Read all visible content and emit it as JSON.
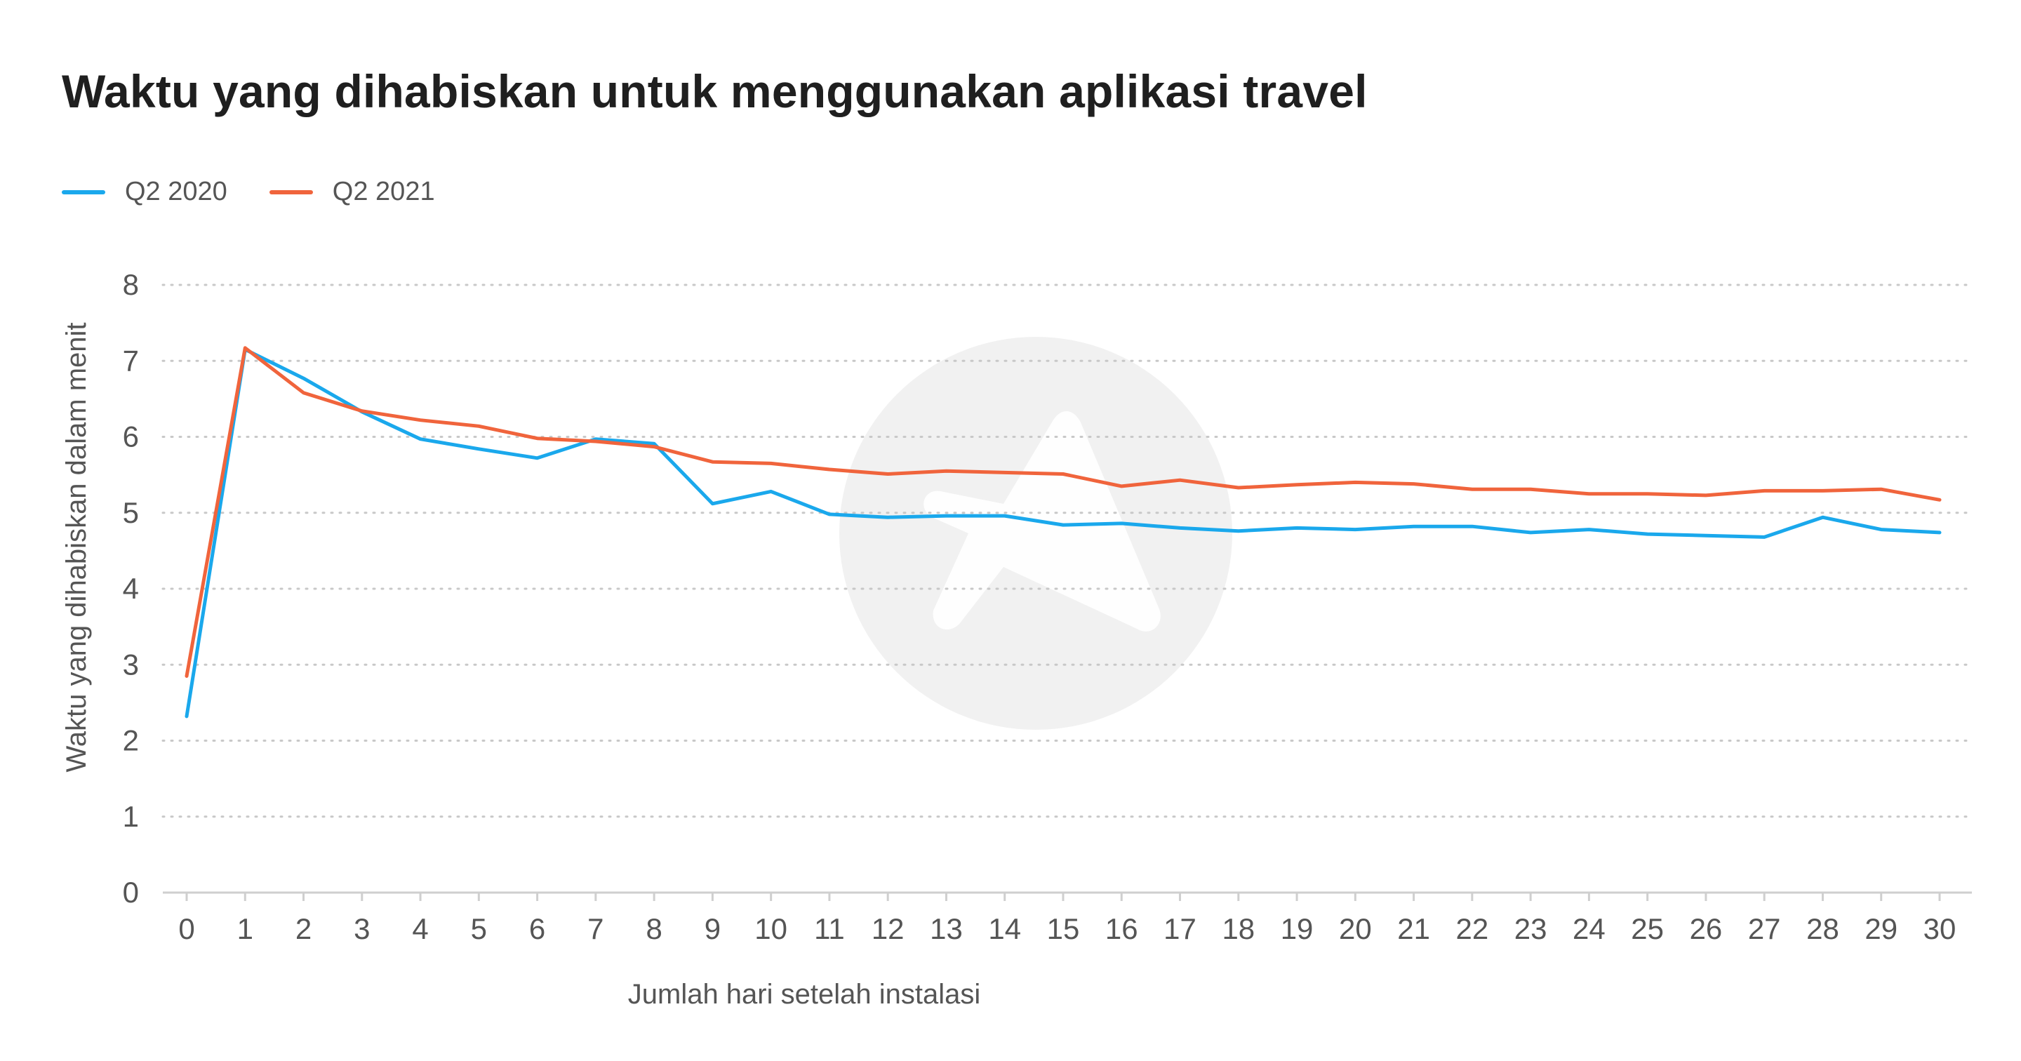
{
  "chart_data": {
    "type": "line",
    "title": "Waktu yang dihabiskan untuk menggunakan aplikasi travel",
    "xlabel": "Jumlah hari setelah instalasi",
    "ylabel": "Waktu yang dihabiskan dalam menit",
    "x": [
      0,
      1,
      2,
      3,
      4,
      5,
      6,
      7,
      8,
      9,
      10,
      11,
      12,
      13,
      14,
      15,
      16,
      17,
      18,
      19,
      20,
      21,
      22,
      23,
      24,
      25,
      26,
      27,
      28,
      29,
      30
    ],
    "ylim": [
      0,
      8
    ],
    "yticks": [
      0,
      1,
      2,
      3,
      4,
      5,
      6,
      7,
      8
    ],
    "grid": "horizontal-dotted",
    "legend_position": "top-left",
    "series": [
      {
        "name": "Q2 2020",
        "color": "#1aa8ec",
        "values": [
          2.32,
          7.15,
          6.77,
          6.33,
          5.97,
          5.84,
          5.72,
          5.97,
          5.91,
          5.12,
          5.28,
          4.98,
          4.94,
          4.96,
          4.96,
          4.84,
          4.86,
          4.8,
          4.76,
          4.8,
          4.78,
          4.82,
          4.82,
          4.74,
          4.78,
          4.72,
          4.7,
          4.68,
          4.94,
          4.78,
          4.74
        ]
      },
      {
        "name": "Q2 2021",
        "color": "#f0643c",
        "values": [
          2.85,
          7.17,
          6.58,
          6.34,
          6.22,
          6.14,
          5.98,
          5.94,
          5.87,
          5.67,
          5.65,
          5.57,
          5.51,
          5.55,
          5.53,
          5.51,
          5.35,
          5.43,
          5.33,
          5.37,
          5.4,
          5.38,
          5.31,
          5.31,
          5.25,
          5.25,
          5.23,
          5.29,
          5.29,
          5.31,
          5.17
        ]
      }
    ]
  }
}
